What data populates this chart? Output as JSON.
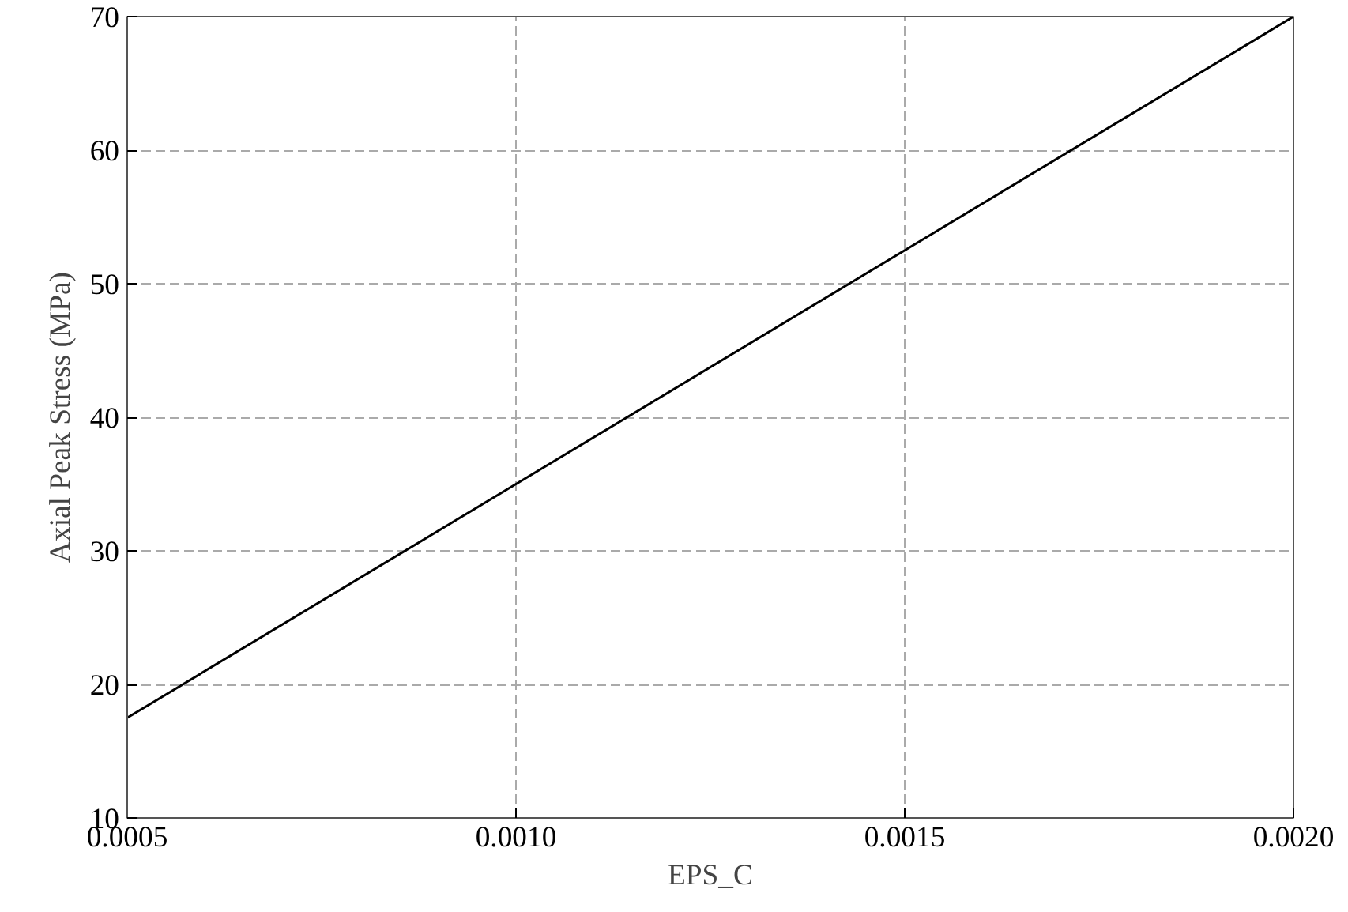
{
  "chart_data": {
    "type": "line",
    "xlabel": "EPS_C",
    "ylabel": "Axial Peak Stress (MPa)",
    "x": [
      0.0005,
      0.001,
      0.0015,
      0.002
    ],
    "series": [
      {
        "color": "#000000",
        "values": [
          17.5,
          35,
          52.5,
          70
        ]
      }
    ],
    "xlim": [
      0.0005,
      0.002
    ],
    "ylim": [
      10,
      70
    ],
    "xticks": [
      {
        "value": 0.0005,
        "label": "0.0005"
      },
      {
        "value": 0.001,
        "label": "0.0010"
      },
      {
        "value": 0.0015,
        "label": "0.0015"
      },
      {
        "value": 0.002,
        "label": "0.0020"
      }
    ],
    "yticks": [
      10,
      20,
      30,
      40,
      50,
      60,
      70
    ],
    "grid": true,
    "line_style": "solid",
    "marker": "none"
  }
}
